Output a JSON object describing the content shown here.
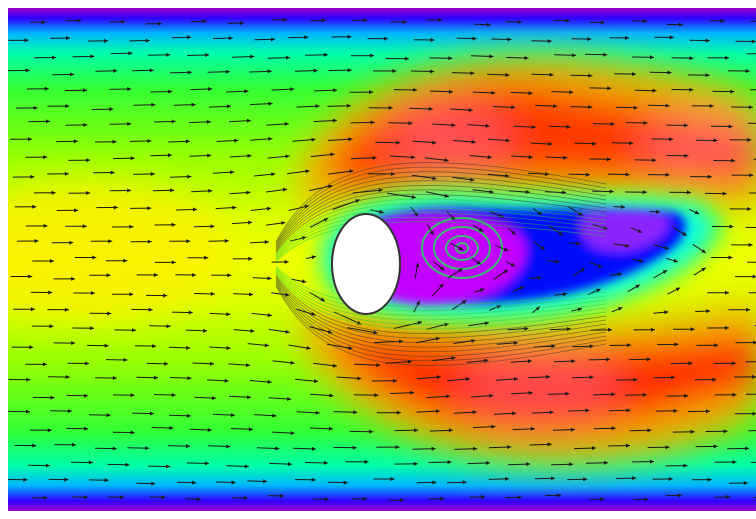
{
  "figure": {
    "kind": "flow-velocity-contour-with-vectors",
    "obstacle": "circular-cylinder",
    "flow_direction": "left-to-right",
    "colormap": [
      "#ff00ff",
      "#8a00ff",
      "#0000ff",
      "#00ffff",
      "#00ff66",
      "#66ff00",
      "#ccff00",
      "#ffff00",
      "#ffaa00",
      "#ff5500",
      "#ff0000"
    ],
    "wall_colors": [
      "#a000c8",
      "#3000ff",
      "#00b4ff",
      "#00ffaa"
    ],
    "vector_color": "#1a1a1a",
    "obstacle_fill": "#ffffff",
    "obstacle_stroke": "#333333"
  }
}
